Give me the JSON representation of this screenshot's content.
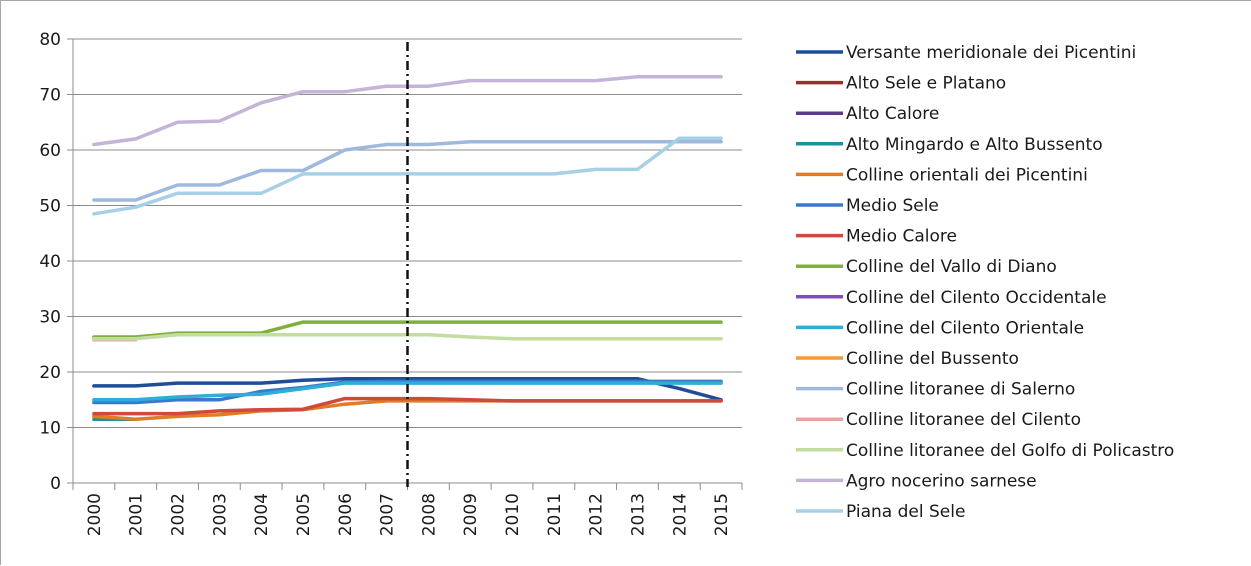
{
  "chart_data": {
    "type": "line",
    "title": "",
    "xlabel": "",
    "ylabel": "",
    "ylim": [
      0,
      80
    ],
    "yticks": [
      0,
      10,
      20,
      30,
      40,
      50,
      60,
      70,
      80
    ],
    "grid": "horizontal",
    "legend": "right",
    "marker_line": {
      "position": "between 2007 and 2008",
      "style": "dash-dot"
    },
    "categories": [
      "2000",
      "2001",
      "2002",
      "2003",
      "2004",
      "2005",
      "2006",
      "2007",
      "2008",
      "2009",
      "2010",
      "2011",
      "2012",
      "2013",
      "2014",
      "2015"
    ],
    "series": [
      {
        "name": "Versante meridionale dei Picentini",
        "color": "#1f4e99",
        "values": [
          17.5,
          17.5,
          18,
          18,
          18,
          18.5,
          18.8,
          18.8,
          18.8,
          18.8,
          18.8,
          18.8,
          18.8,
          18.8,
          17,
          15
        ]
      },
      {
        "name": "Alto Sele e Platano",
        "color": "#a32b2b",
        "values": [
          null,
          null,
          null,
          null,
          null,
          null,
          null,
          null,
          null,
          null,
          null,
          null,
          null,
          null,
          null,
          null
        ]
      },
      {
        "name": "Alto Calore",
        "color": "#5b3a8c",
        "values": [
          null,
          null,
          null,
          null,
          null,
          null,
          null,
          null,
          null,
          null,
          null,
          null,
          null,
          null,
          null,
          null
        ]
      },
      {
        "name": "Alto Mingardo e Alto Bussento",
        "color": "#1e8fa0",
        "values": [
          11.5,
          11.5,
          null,
          null,
          null,
          null,
          null,
          null,
          null,
          null,
          null,
          null,
          null,
          null,
          null,
          null
        ]
      },
      {
        "name": "Colline orientali dei Picentini",
        "color": "#e07b26",
        "values": [
          12,
          11.5,
          12,
          12.3,
          13,
          13.2,
          14.2,
          14.8,
          14.8,
          14.8,
          14.8,
          14.8,
          14.8,
          14.8,
          14.8,
          14.8
        ]
      },
      {
        "name": "Medio Sele",
        "color": "#3a78c9",
        "values": [
          14.5,
          14.5,
          15,
          15,
          16.5,
          17.2,
          18.2,
          18.3,
          18.3,
          18.3,
          18.3,
          18.3,
          18.3,
          18.3,
          18.3,
          18.3
        ]
      },
      {
        "name": "Medio Calore",
        "color": "#d04a3c",
        "values": [
          12.5,
          12.5,
          12.5,
          13,
          13.2,
          13.3,
          15.2,
          15.2,
          15.2,
          15,
          14.8,
          14.8,
          14.8,
          14.8,
          14.8,
          14.8
        ]
      },
      {
        "name": "Colline del Vallo di Diano",
        "color": "#7fb03a",
        "values": [
          26.3,
          26.3,
          27,
          27,
          27,
          29,
          29,
          29,
          29,
          29,
          29,
          29,
          29,
          29,
          29,
          29
        ]
      },
      {
        "name": "Colline del Cilento Occidentale",
        "color": "#7d4fb3",
        "values": [
          null,
          null,
          null,
          null,
          null,
          null,
          null,
          null,
          null,
          null,
          null,
          null,
          null,
          null,
          null,
          null
        ]
      },
      {
        "name": "Colline del Cilento Orientale",
        "color": "#2eaed6",
        "values": [
          15,
          15,
          15.5,
          15.8,
          16,
          17,
          18,
          18,
          18,
          18,
          18,
          18,
          18,
          18,
          18,
          18
        ]
      },
      {
        "name": "Colline del Bussento",
        "color": "#f39a3b",
        "values": [
          null,
          null,
          null,
          null,
          null,
          null,
          null,
          null,
          null,
          null,
          null,
          null,
          null,
          null,
          null,
          null
        ]
      },
      {
        "name": "Colline litoranee di Salerno",
        "color": "#9fb9de",
        "values": [
          51,
          51,
          53.7,
          53.7,
          56.3,
          56.3,
          60,
          61,
          61,
          61.5,
          61.5,
          61.5,
          61.5,
          61.5,
          61.5,
          61.5
        ]
      },
      {
        "name": "Colline litoranee del Cilento",
        "color": "#e9a2a2",
        "values": [
          25.8,
          25.8,
          null,
          null,
          null,
          null,
          null,
          null,
          null,
          null,
          null,
          null,
          null,
          null,
          null,
          null
        ]
      },
      {
        "name": "Colline litoranee del Golfo di Policastro",
        "color": "#c2dca2",
        "values": [
          26,
          26,
          26.7,
          26.7,
          26.7,
          26.7,
          26.7,
          26.7,
          26.7,
          26.3,
          26,
          26,
          26,
          26,
          26,
          26
        ]
      },
      {
        "name": "Agro nocerino sarnese",
        "color": "#c3b4d8",
        "values": [
          61,
          62,
          65,
          65.2,
          68.5,
          70.5,
          70.5,
          71.5,
          71.5,
          72.5,
          72.5,
          72.5,
          72.5,
          73.2,
          73.2,
          73.2
        ]
      },
      {
        "name": "Piana del Sele",
        "color": "#a6d0e6",
        "values": [
          48.5,
          49.7,
          52.2,
          52.2,
          52.2,
          55.7,
          55.7,
          55.7,
          55.7,
          55.7,
          55.7,
          55.7,
          56.5,
          56.5,
          62.1,
          62.1
        ]
      }
    ]
  }
}
